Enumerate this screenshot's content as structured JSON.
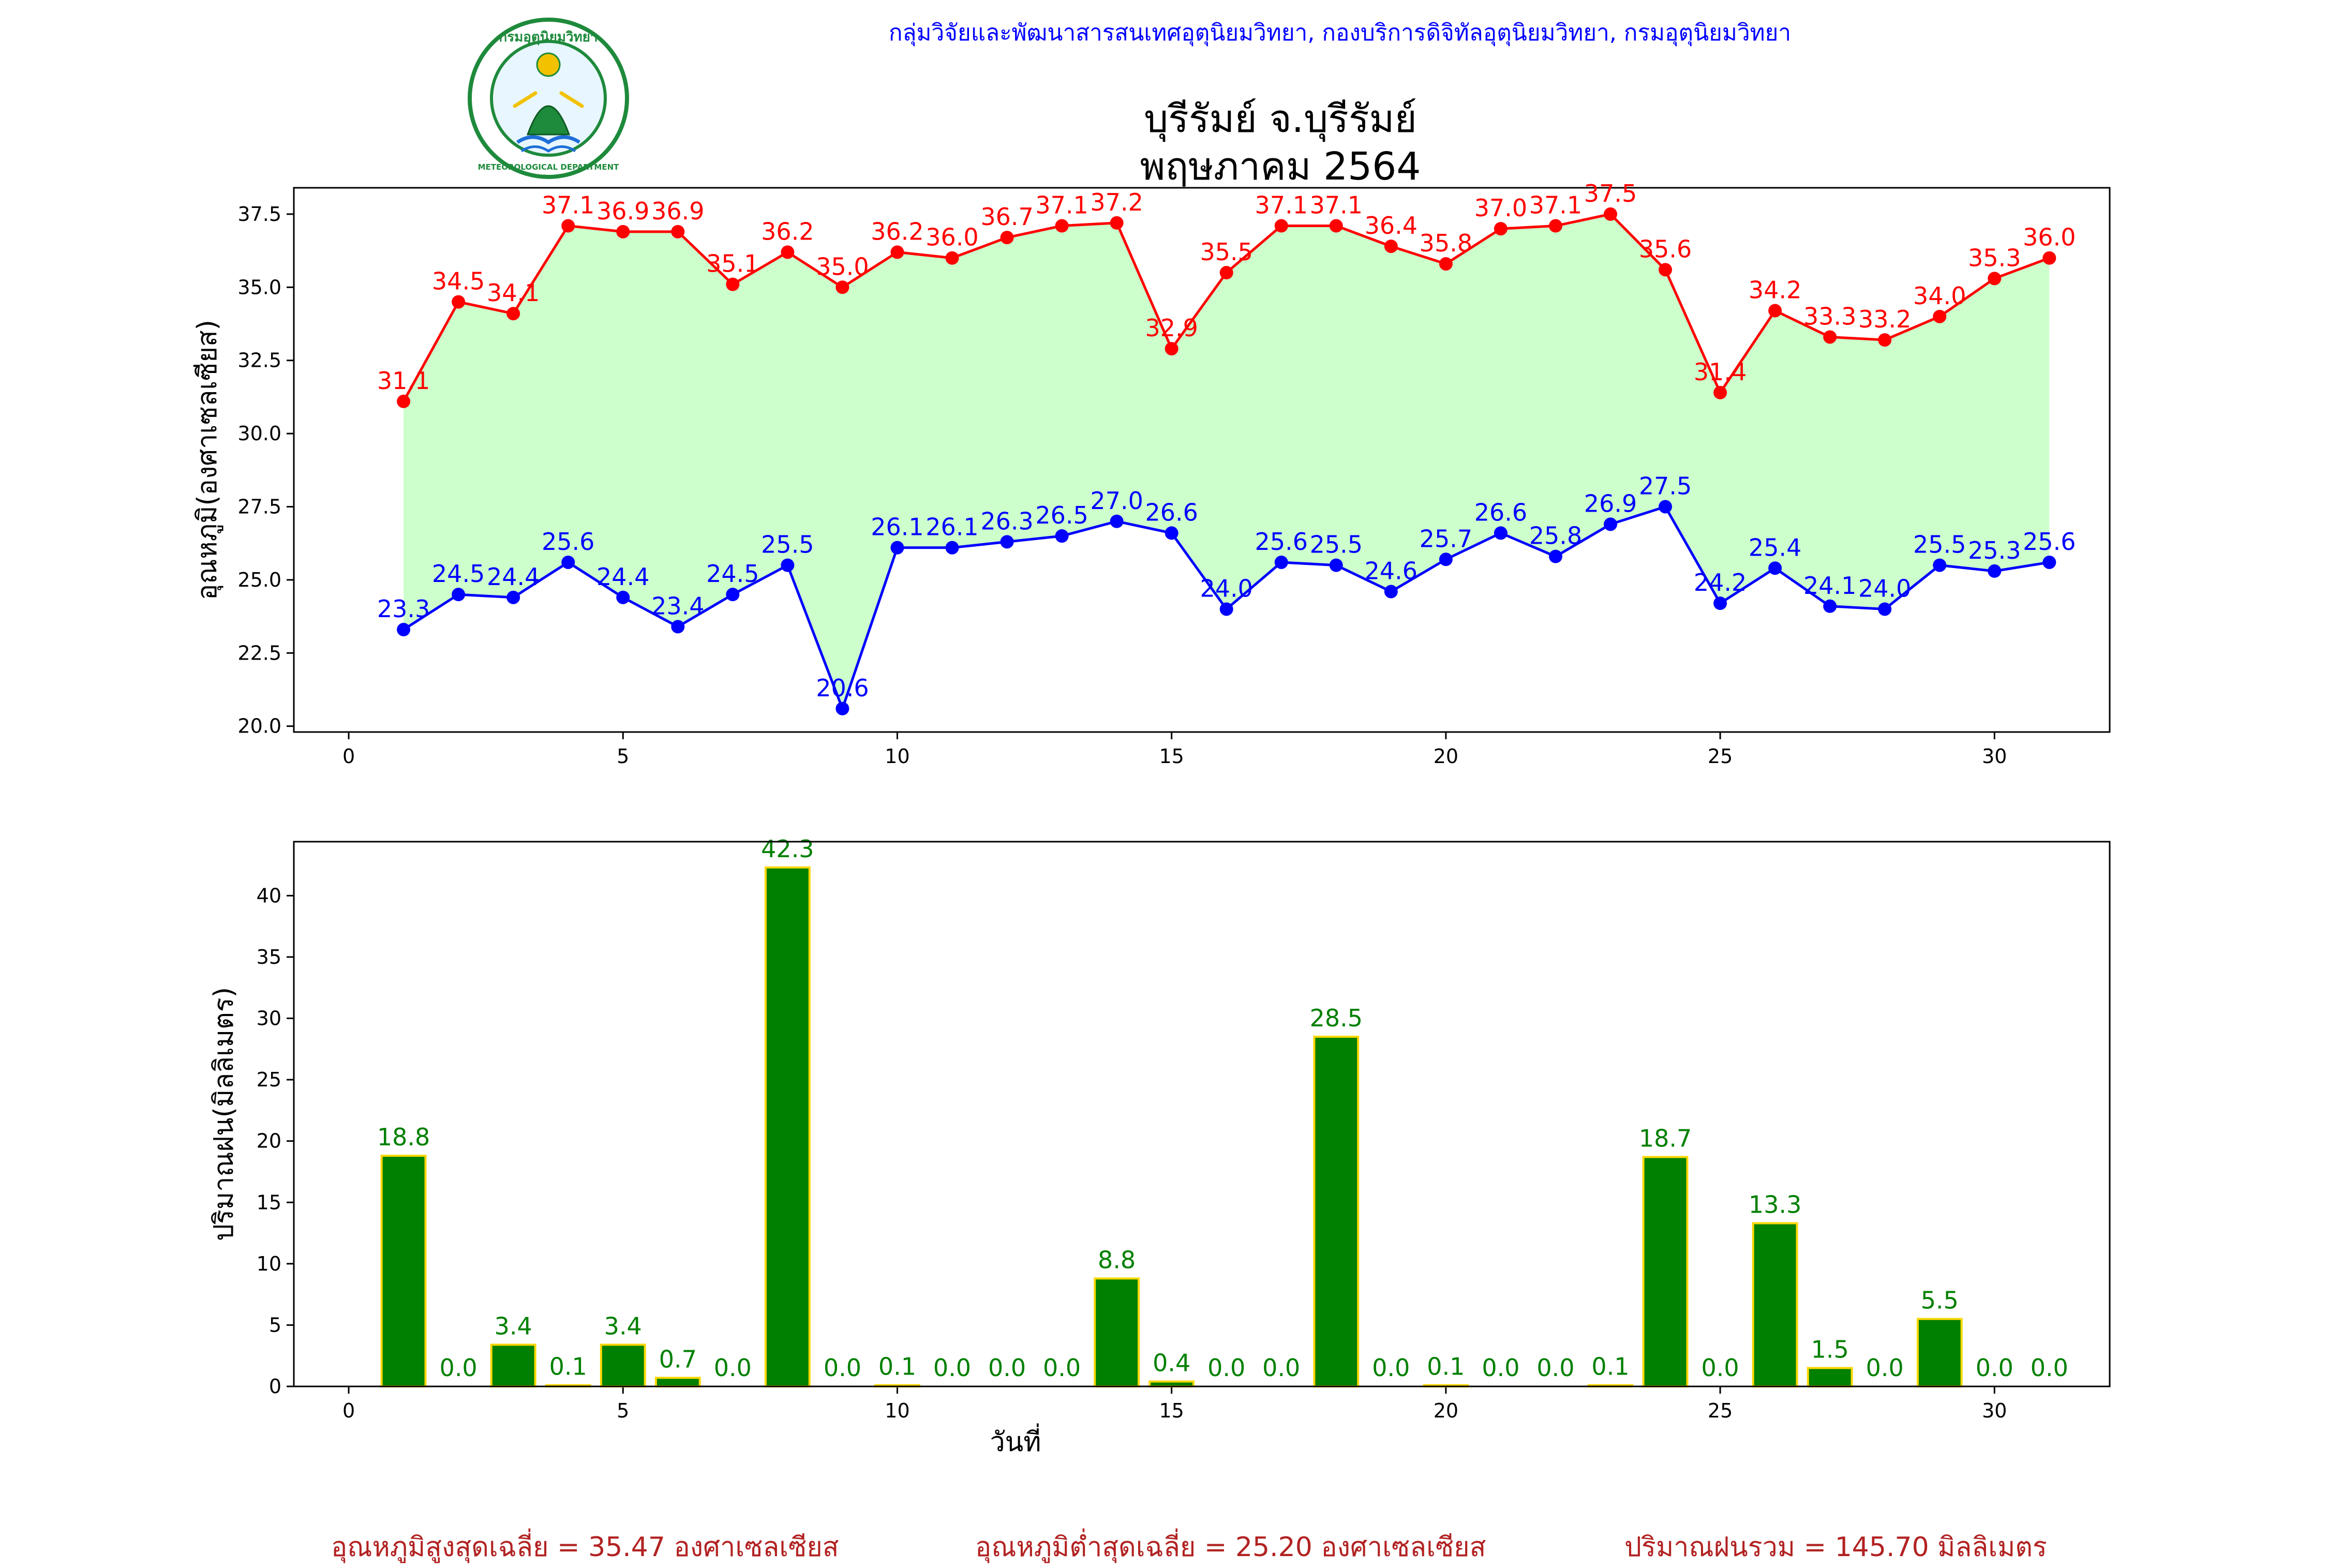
{
  "header": {
    "department_line": "กลุ่มวิจัยและพัฒนาสารสนเทศอุตุนิยมวิทยา, กองบริการดิจิทัลอุตุนิยมวิทยา, กรมอุตุนิยมวิทยา",
    "title_line1": "บุรีรัมย์ จ.บุรีรัมย์",
    "title_line2": "พฤษภาคม 2564",
    "logo_ring_text": "กรมอุตุนิยมวิทยา",
    "logo_bottom_text": "METEOROLOGICAL DEPARTMENT"
  },
  "colors": {
    "max_temp": "#ff0000",
    "min_temp": "#0000ff",
    "temp_fill": "#ccffcc",
    "rain_bar": "#008000",
    "rain_edge": "#ffd700",
    "rain_label": "#008000",
    "summary_text": "#b22222",
    "dept_text": "#0000ff",
    "logo_green": "#1e8a3c"
  },
  "chart_data": [
    {
      "type": "line",
      "title": "",
      "ylabel": "อุณหภูมิ(องศาเซลเซียส)",
      "xlabel": "",
      "xlim": [
        -1,
        32.1
      ],
      "ylim": [
        19.8,
        38.4
      ],
      "xticks": [
        0,
        5,
        10,
        15,
        20,
        25,
        30
      ],
      "yticks": [
        "20.0",
        "22.5",
        "25.0",
        "27.5",
        "30.0",
        "32.5",
        "35.0",
        "37.5"
      ],
      "x": [
        1,
        2,
        3,
        4,
        5,
        6,
        7,
        8,
        9,
        10,
        11,
        12,
        13,
        14,
        15,
        16,
        17,
        18,
        19,
        20,
        21,
        22,
        23,
        24,
        25,
        26,
        27,
        28,
        29,
        30,
        31
      ],
      "fill_between": true,
      "series": [
        {
          "key": "max",
          "values": [
            31.1,
            34.5,
            34.1,
            37.1,
            36.9,
            36.9,
            35.1,
            36.2,
            35.0,
            36.2,
            36.0,
            36.7,
            37.1,
            37.2,
            32.9,
            35.5,
            37.1,
            37.1,
            36.4,
            35.8,
            37.0,
            37.1,
            37.5,
            35.6,
            31.4,
            34.2,
            33.3,
            33.2,
            34.0,
            35.3,
            36.0
          ]
        },
        {
          "key": "min",
          "values": [
            23.3,
            24.5,
            24.4,
            25.6,
            24.4,
            23.4,
            24.5,
            25.5,
            20.6,
            26.1,
            26.1,
            26.3,
            26.5,
            27.0,
            26.6,
            24.0,
            25.6,
            25.5,
            24.6,
            25.7,
            26.6,
            25.8,
            26.9,
            27.5,
            24.2,
            25.4,
            24.1,
            24.0,
            25.5,
            25.3,
            25.6
          ]
        }
      ]
    },
    {
      "type": "bar",
      "title": "",
      "ylabel": "ปริมาณฝน(มิลลิเมตร)",
      "xlabel": "วันที่",
      "xlim": [
        -1,
        32.1
      ],
      "ylim": [
        0,
        44.4
      ],
      "xticks": [
        0,
        5,
        10,
        15,
        20,
        25,
        30
      ],
      "yticks": [
        0,
        5,
        10,
        15,
        20,
        25,
        30,
        35,
        40
      ],
      "x": [
        1,
        2,
        3,
        4,
        5,
        6,
        7,
        8,
        9,
        10,
        11,
        12,
        13,
        14,
        15,
        16,
        17,
        18,
        19,
        20,
        21,
        22,
        23,
        24,
        25,
        26,
        27,
        28,
        29,
        30,
        31
      ],
      "values": [
        18.8,
        0.0,
        3.4,
        0.1,
        3.4,
        0.7,
        0.0,
        42.3,
        0.0,
        0.1,
        0.0,
        0.0,
        0.0,
        8.8,
        0.4,
        0.0,
        0.0,
        28.5,
        0.0,
        0.1,
        0.0,
        0.0,
        0.1,
        18.7,
        0.0,
        13.3,
        1.5,
        0.0,
        5.5,
        0.0,
        0.0
      ]
    }
  ],
  "summary": {
    "avg_max": "อุณหภูมิสูงสุดเฉลี่ย = 35.47 องศาเซลเซียส",
    "avg_min": "อุณหภูมิต่ำสุดเฉลี่ย = 25.20 องศาเซลเซียส",
    "rain_total": "ปริมาณฝนรวม = 145.70 มิลลิเมตร"
  }
}
